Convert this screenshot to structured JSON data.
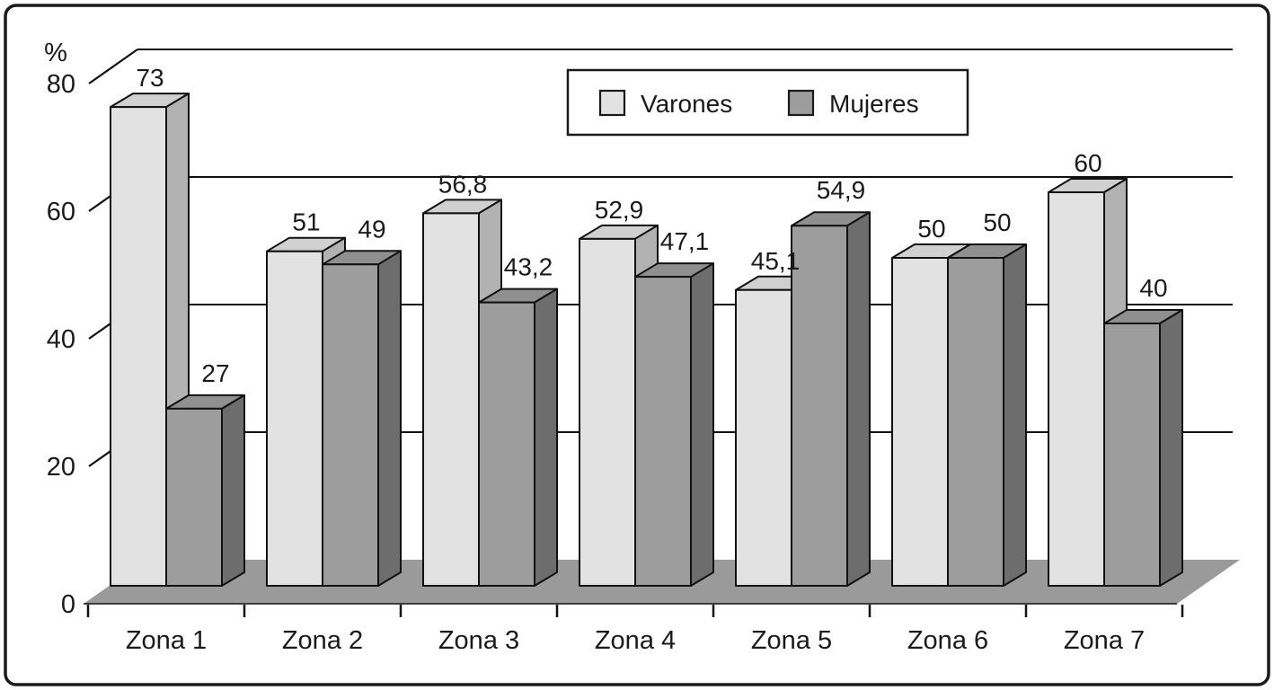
{
  "chart_data": {
    "type": "bar",
    "style": "3d-column",
    "title": "",
    "xlabel": "",
    "ylabel": "%",
    "categories": [
      "Zona 1",
      "Zona 2",
      "Zona 3",
      "Zona 4",
      "Zona 5",
      "Zona 6",
      "Zona 7"
    ],
    "series": [
      {
        "name": "Varones",
        "values": [
          73,
          51,
          56.8,
          52.9,
          45.1,
          50,
          60
        ],
        "value_labels": [
          "73",
          "51",
          "56,8",
          "52,9",
          "45,1",
          "50",
          "60"
        ],
        "color_front": "#e2e2e2",
        "color_top": "#d0d0d0",
        "color_side": "#b2b2b2"
      },
      {
        "name": "Mujeres",
        "values": [
          27,
          49,
          43.2,
          47.1,
          54.9,
          50,
          40
        ],
        "value_labels": [
          "27",
          "49",
          "43,2",
          "47,1",
          "54,9",
          "50",
          "40"
        ],
        "color_front": "#9d9d9d",
        "color_top": "#8f8f8f",
        "color_side": "#6d6d6d"
      }
    ],
    "yticks": [
      0,
      20,
      40,
      60,
      80
    ],
    "ytick_labels": [
      "0",
      "20",
      "40",
      "60",
      "80"
    ],
    "ylim": [
      0,
      80
    ],
    "grid": "horizontal",
    "legend_position": "top-center",
    "floor_color": "#9a9a9a",
    "outline_color": "#111111",
    "background_color": "#ffffff"
  }
}
